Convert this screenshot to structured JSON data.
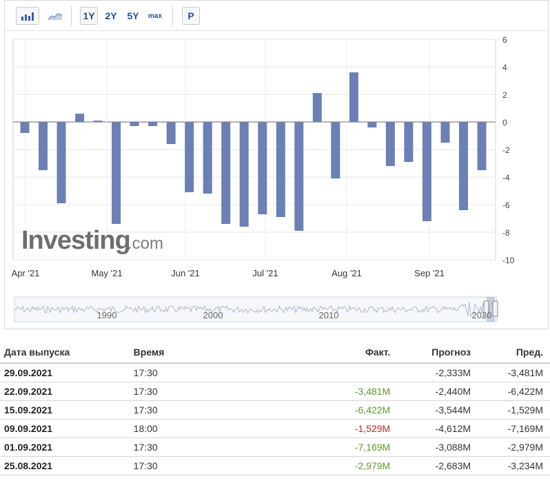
{
  "toolbar": {
    "bar_chart_icon": "bar-chart-icon",
    "area_chart_icon": "area-chart-icon",
    "periods": [
      "1Y",
      "2Y",
      "5Y",
      "max"
    ],
    "p_button": "P"
  },
  "watermark": {
    "brand": "Investing",
    "suffix": ".com"
  },
  "chart_data": {
    "type": "bar",
    "x_tick_labels": [
      "Apr '21",
      "May '21",
      "Jun '21",
      "Jul '21",
      "Aug '21",
      "Sep '21"
    ],
    "y_ticks": [
      6,
      4,
      2,
      0,
      -2,
      -4,
      -6,
      -8,
      -10
    ],
    "ylim": [
      -10,
      6
    ],
    "grid": true,
    "bar_color": "#6b80b4",
    "values": [
      -0.8,
      -3.5,
      -5.9,
      0.6,
      0.1,
      -7.4,
      -0.3,
      -0.3,
      -1.6,
      -5.1,
      -5.2,
      -7.4,
      -7.6,
      -6.7,
      -6.9,
      -7.9,
      2.1,
      -4.1,
      3.6,
      -0.4,
      -3.2,
      -2.9,
      -7.2,
      -1.5,
      -6.4,
      -3.5
    ],
    "navigator": {
      "labels": [
        "1990",
        "2000",
        "2010",
        "2020"
      ]
    }
  },
  "table": {
    "headers": {
      "date": "Дата выпуска",
      "time": "Время",
      "fact": "Факт.",
      "forecast": "Прогноз",
      "previous": "Пред."
    },
    "rows": [
      {
        "date": "29.09.2021",
        "time": "17:30",
        "fact": "",
        "fact_color": "",
        "forecast": "-2,333M",
        "previous": "-3,481M"
      },
      {
        "date": "22.09.2021",
        "time": "17:30",
        "fact": "-3,481M",
        "fact_color": "#5a9a2a",
        "forecast": "-2,440M",
        "previous": "-6,422M"
      },
      {
        "date": "15.09.2021",
        "time": "17:30",
        "fact": "-6,422M",
        "fact_color": "#5a9a2a",
        "forecast": "-3,544M",
        "previous": "-1,529M"
      },
      {
        "date": "09.09.2021",
        "time": "18:00",
        "fact": "-1,529M",
        "fact_color": "#c0272d",
        "forecast": "-4,612M",
        "previous": "-7,169M"
      },
      {
        "date": "01.09.2021",
        "time": "17:30",
        "fact": "-7,169M",
        "fact_color": "#5a9a2a",
        "forecast": "-3,088M",
        "previous": "-2,979M"
      },
      {
        "date": "25.08.2021",
        "time": "17:30",
        "fact": "-2,979M",
        "fact_color": "#5a9a2a",
        "forecast": "-2,683M",
        "previous": "-3,234M"
      }
    ]
  }
}
